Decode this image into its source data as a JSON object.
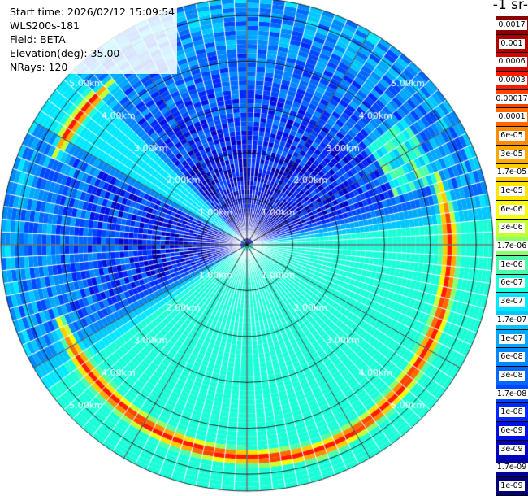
{
  "header": {
    "lines": [
      "Start time: 2026/02/12 15:09:54",
      "WLS200s-181",
      "Field: BETA",
      "Elevation(deg): 35.00",
      "NRays: 120"
    ]
  },
  "colorbar": {
    "units_label": "-1 sr-",
    "labels": [
      "0.0017",
      "0.001",
      "0.0006",
      "0.0003",
      "0.00017",
      "0.0001",
      "6e-05",
      "3e-05",
      "1.7e-05",
      "1e-05",
      "6e-06",
      "3e-06",
      "1.7e-06",
      "1e-06",
      "6e-07",
      "3e-07",
      "1.7e-07",
      "1e-07",
      "6e-08",
      "3e-08",
      "1.7e-08",
      "1e-08",
      "6e-09",
      "3e-09",
      "1.7e-09",
      "1e-09"
    ],
    "colors": [
      "#8b0000",
      "#b00000",
      "#d80000",
      "#ff1a00",
      "#ff4400",
      "#ff6a00",
      "#ff8c00",
      "#ffaa00",
      "#ffcc00",
      "#ffe400",
      "#f7ff00",
      "#c8ff30",
      "#8cff6a",
      "#4cffa8",
      "#1affd8",
      "#00e8ff",
      "#00c8ff",
      "#00a8ff",
      "#0088ff",
      "#0068ff",
      "#0048ff",
      "#0028ff",
      "#0010e0",
      "#0000c0",
      "#00009a",
      "#000078"
    ]
  },
  "chart_data": {
    "type": "polar-ppi",
    "field": "BETA",
    "elevation_deg": 35.0,
    "n_rays": 120,
    "range_rings_km": [
      1,
      2,
      3,
      4,
      5
    ],
    "ring_labels": [
      "1.00km",
      "2.00km",
      "3.00km",
      "4.00km",
      "5.00km"
    ],
    "max_range_km": 5.37,
    "azimuth_lines_deg": [
      0,
      30,
      60,
      90,
      120,
      150,
      180,
      210,
      240,
      270,
      300,
      330
    ],
    "aerosol_band": {
      "range_km_center": 4.75,
      "azimuth_start_deg": 70,
      "azimuth_end_deg": 250,
      "peak_value": 0.0003
    },
    "secondary_arc": {
      "range_km_center": 4.6,
      "azimuth_start_deg": 295,
      "azimuth_end_deg": 320,
      "peak_value": 0.0003
    },
    "background": {
      "near_value": 3e-09,
      "far_value": 1e-07
    }
  }
}
